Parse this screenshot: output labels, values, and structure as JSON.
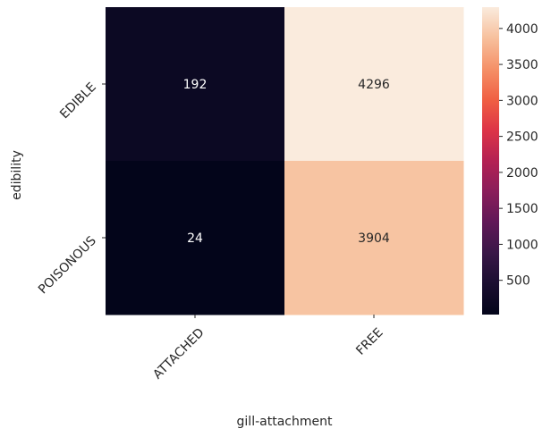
{
  "chart_data": {
    "type": "heatmap",
    "xlabel": "gill-attachment",
    "ylabel": "edibility",
    "x_categories": [
      "ATTACHED",
      "FREE"
    ],
    "y_categories": [
      "EDIBLE",
      "POISONOUS"
    ],
    "values": [
      [
        192,
        4296
      ],
      [
        24,
        3904
      ]
    ],
    "colorbar": {
      "range": [
        24,
        4296
      ],
      "ticks": [
        500,
        1000,
        1500,
        2000,
        2500,
        3000,
        3500,
        4000
      ],
      "colormap": "rocket"
    }
  }
}
